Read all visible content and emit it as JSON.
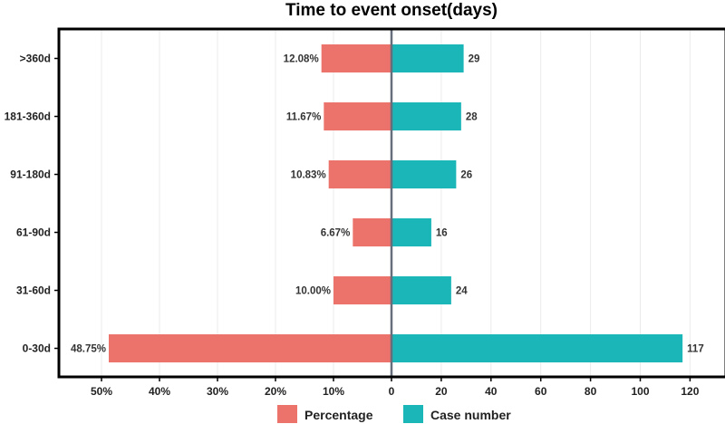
{
  "chart_data": {
    "type": "bar",
    "orientation": "horizontal-diverging",
    "title": "Time to event onset(days)",
    "categories": [
      "0-30d",
      "31-60d",
      "61-90d",
      "91-180d",
      "181-360d",
      ">360d"
    ],
    "series": [
      {
        "name": "Percentage",
        "color": "#ec736b",
        "side": "left",
        "values": [
          48.75,
          10.0,
          6.67,
          10.83,
          11.67,
          12.08
        ],
        "labels": [
          "48.75%",
          "10.00%",
          "6.67%",
          "10.83%",
          "11.67%",
          "12.08%"
        ]
      },
      {
        "name": "Case number",
        "color": "#1bb6b8",
        "side": "right",
        "values": [
          117,
          24,
          16,
          26,
          28,
          29
        ],
        "labels": [
          "117",
          "24",
          "16",
          "26",
          "28",
          "29"
        ]
      }
    ],
    "left_axis": {
      "range": [
        0,
        50
      ],
      "ticks": [
        50,
        40,
        30,
        20,
        10
      ],
      "tick_labels": [
        "50%",
        "40%",
        "30%",
        "20%",
        "10%"
      ]
    },
    "right_axis": {
      "range": [
        0,
        120
      ],
      "ticks": [
        0,
        20,
        40,
        60,
        80,
        100,
        120
      ],
      "tick_labels": [
        "0",
        "20",
        "40",
        "60",
        "80",
        "100",
        "120"
      ]
    },
    "grid": true,
    "legend": {
      "position": "bottom",
      "entries": [
        "Percentage",
        "Case number"
      ]
    }
  }
}
